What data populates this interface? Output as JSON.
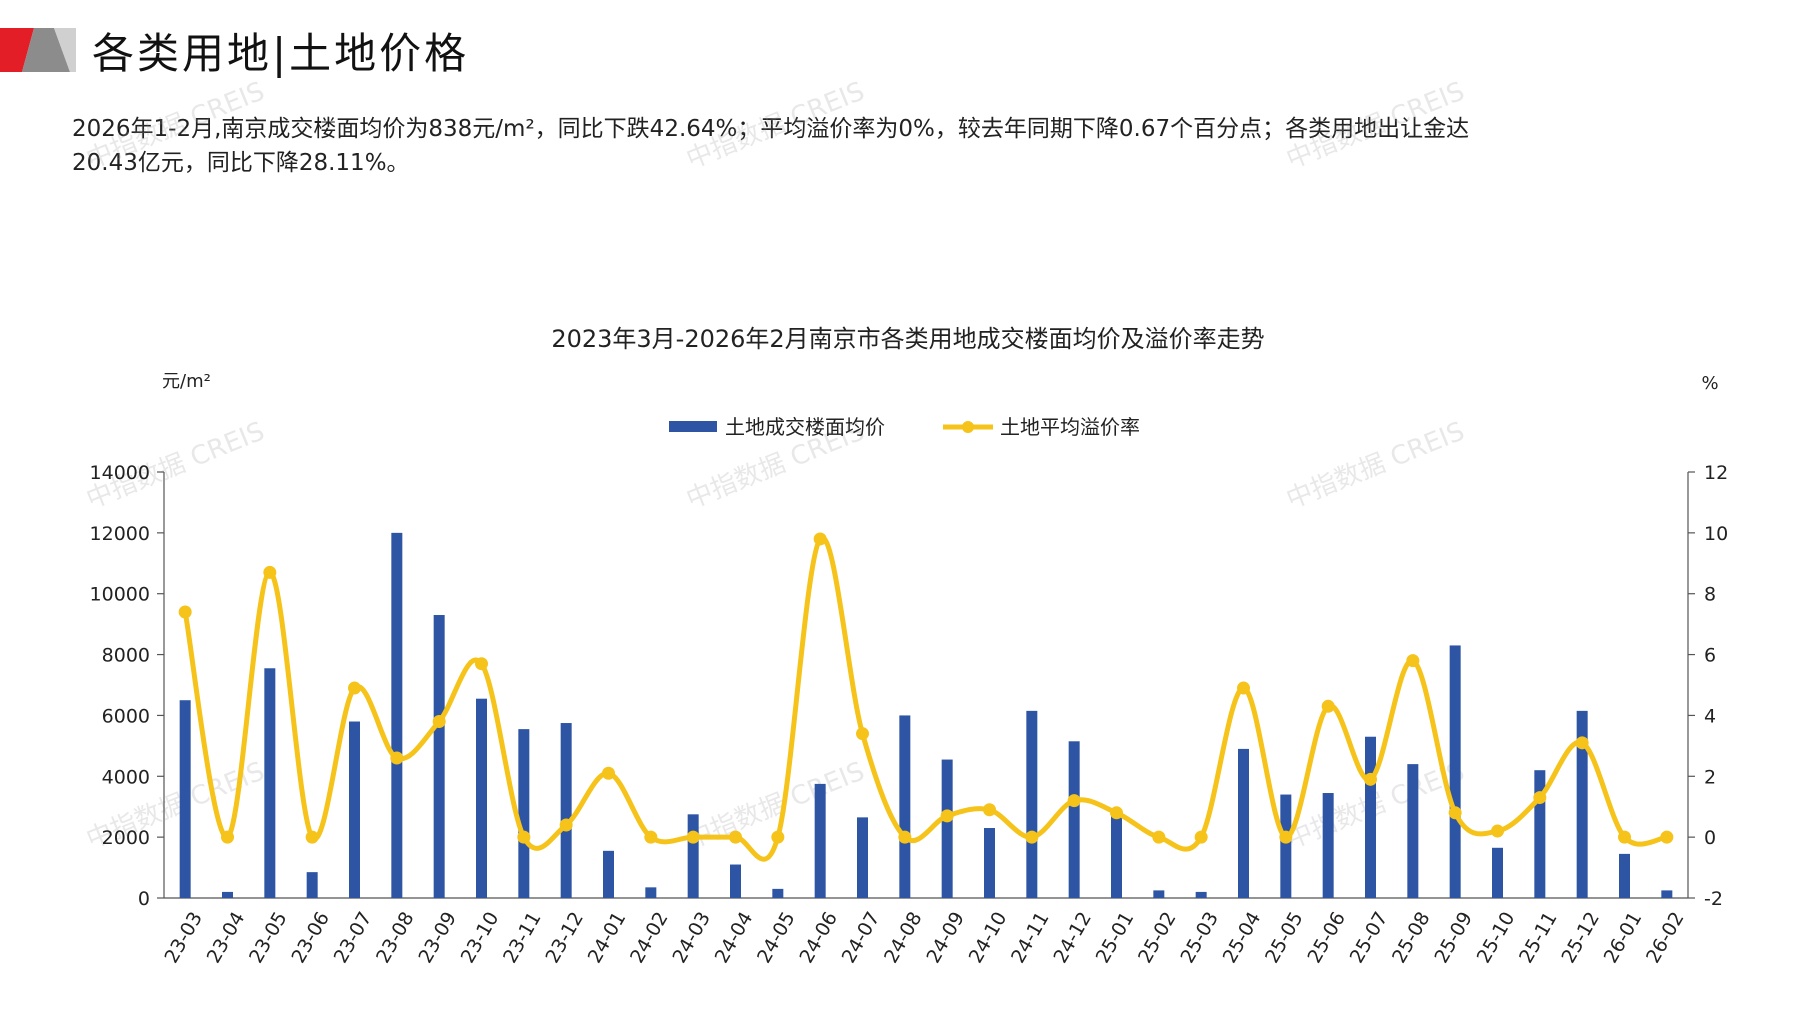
{
  "header": {
    "title": "各类用地|土地价格",
    "summary_line1": "2026年1-2月,南京成交楼面均价为838元/m²，同比下跌42.64%；平均溢价率为0%，较去年同期下降0.67个百分点；各类用地出让金达",
    "summary_line2": "20.43亿元，同比下降28.11%。"
  },
  "watermark": "中指数据 CREIS",
  "colors": {
    "bar": "#2E55A3",
    "line": "#F5C31A",
    "logo_red": "#E41E26",
    "logo_grey": "#8C8C8C"
  },
  "chart_data": {
    "type": "bar+line",
    "title": "2023年3月-2026年2月南京市各类用地成交楼面均价及溢价率走势",
    "ylabel_left": "元/m²",
    "ylabel_right": "%",
    "ylim_left": [
      0,
      14000
    ],
    "ylim_right": [
      -2,
      12
    ],
    "yticks_left": [
      "0",
      "2000",
      "4000",
      "6000",
      "8000",
      "10000",
      "12000",
      "14000"
    ],
    "yticks_right": [
      "-2",
      "0",
      "2",
      "4",
      "6",
      "8",
      "10",
      "12"
    ],
    "legend_position": "top-center",
    "categories": [
      "23-03",
      "23-04",
      "23-05",
      "23-06",
      "23-07",
      "23-08",
      "23-09",
      "23-10",
      "23-11",
      "23-12",
      "24-01",
      "24-02",
      "24-03",
      "24-04",
      "24-05",
      "24-06",
      "24-07",
      "24-08",
      "24-09",
      "24-10",
      "24-11",
      "24-12",
      "25-01",
      "25-02",
      "25-03",
      "25-04",
      "25-05",
      "25-06",
      "25-07",
      "25-08",
      "25-09",
      "25-10",
      "25-11",
      "25-12",
      "26-01",
      "26-02"
    ],
    "series": [
      {
        "name": "土地成交楼面均价",
        "type": "bar",
        "axis": "left",
        "values": [
          6500,
          200,
          7550,
          850,
          5800,
          12000,
          9300,
          6550,
          5550,
          5750,
          1550,
          350,
          2750,
          1100,
          300,
          3750,
          2650,
          6000,
          4550,
          2300,
          6150,
          5150,
          2750,
          250,
          200,
          4900,
          3400,
          3450,
          5300,
          4400,
          8300,
          1650,
          4200,
          6150,
          1450,
          250
        ]
      },
      {
        "name": "土地平均溢价率",
        "type": "line",
        "axis": "right",
        "values": [
          7.4,
          0,
          8.7,
          0,
          4.9,
          2.6,
          3.8,
          5.7,
          0,
          0.4,
          2.1,
          0,
          0,
          0,
          0,
          9.8,
          3.4,
          0,
          0.7,
          0.9,
          0,
          1.2,
          0.8,
          0,
          0,
          4.9,
          0,
          4.3,
          1.9,
          5.8,
          0.8,
          0.2,
          1.3,
          3.1,
          0,
          0
        ]
      }
    ]
  }
}
